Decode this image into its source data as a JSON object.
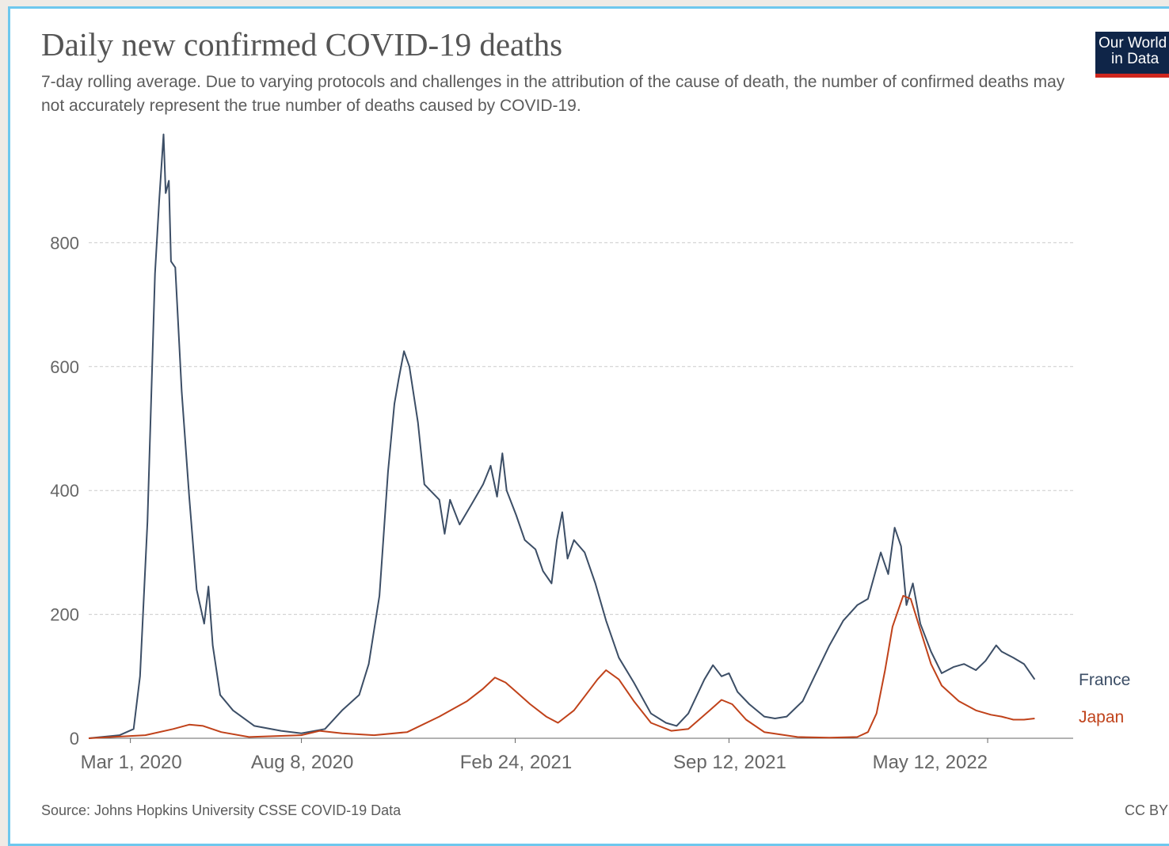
{
  "title": "Daily new confirmed COVID-19 deaths",
  "subtitle": "7-day rolling average. Due to varying protocols and challenges in the attribution of the cause of death, the number of confirmed deaths may not accurately represent the true number of deaths caused by COVID-19.",
  "logo": {
    "line1": "Our World",
    "line2": "in Data"
  },
  "source": "Source: Johns Hopkins University CSSE COVID-19 Data",
  "license": "CC BY",
  "colors": {
    "France": "#3c4e66",
    "Japan": "#c0421a",
    "grid": "#cccccc",
    "axis": "#666666"
  },
  "chart_data": {
    "type": "line",
    "title": "Daily new confirmed COVID-19 deaths",
    "xlabel": "",
    "ylabel": "",
    "ylim": [
      0,
      1000
    ],
    "xlim": [
      "2020-01-22",
      "2022-07-31"
    ],
    "grid": true,
    "legend": "right, labels at line ends",
    "yticks": [
      0,
      200,
      400,
      600,
      800
    ],
    "xticks": [
      {
        "date": "2020-03-01",
        "label": "Mar 1, 2020"
      },
      {
        "date": "2020-08-08",
        "label": "Aug 8, 2020"
      },
      {
        "date": "2021-02-24",
        "label": "Feb 24, 2021"
      },
      {
        "date": "2021-09-12",
        "label": "Sep 12, 2021"
      },
      {
        "date": "2022-05-12",
        "label": "May 12, 2022"
      }
    ],
    "series": [
      {
        "name": "France",
        "points": [
          [
            "2020-01-22",
            0
          ],
          [
            "2020-02-20",
            5
          ],
          [
            "2020-03-04",
            15
          ],
          [
            "2020-03-10",
            100
          ],
          [
            "2020-03-17",
            350
          ],
          [
            "2020-03-24",
            750
          ],
          [
            "2020-03-28",
            870
          ],
          [
            "2020-04-01",
            975
          ],
          [
            "2020-04-03",
            880
          ],
          [
            "2020-04-06",
            900
          ],
          [
            "2020-04-08",
            770
          ],
          [
            "2020-04-12",
            760
          ],
          [
            "2020-04-18",
            560
          ],
          [
            "2020-04-25",
            390
          ],
          [
            "2020-05-02",
            240
          ],
          [
            "2020-05-09",
            185
          ],
          [
            "2020-05-13",
            245
          ],
          [
            "2020-05-17",
            150
          ],
          [
            "2020-05-24",
            70
          ],
          [
            "2020-06-05",
            45
          ],
          [
            "2020-06-25",
            20
          ],
          [
            "2020-07-20",
            12
          ],
          [
            "2020-08-08",
            8
          ],
          [
            "2020-08-30",
            15
          ],
          [
            "2020-09-15",
            45
          ],
          [
            "2020-10-01",
            70
          ],
          [
            "2020-10-10",
            120
          ],
          [
            "2020-10-20",
            230
          ],
          [
            "2020-10-28",
            430
          ],
          [
            "2020-11-03",
            540
          ],
          [
            "2020-11-07",
            580
          ],
          [
            "2020-11-12",
            625
          ],
          [
            "2020-11-17",
            600
          ],
          [
            "2020-11-25",
            510
          ],
          [
            "2020-12-01",
            410
          ],
          [
            "2020-12-15",
            385
          ],
          [
            "2020-12-20",
            330
          ],
          [
            "2020-12-25",
            385
          ],
          [
            "2021-01-03",
            345
          ],
          [
            "2021-01-15",
            380
          ],
          [
            "2021-01-25",
            410
          ],
          [
            "2021-02-01",
            440
          ],
          [
            "2021-02-07",
            390
          ],
          [
            "2021-02-12",
            460
          ],
          [
            "2021-02-16",
            400
          ],
          [
            "2021-02-25",
            360
          ],
          [
            "2021-03-05",
            320
          ],
          [
            "2021-03-15",
            305
          ],
          [
            "2021-03-22",
            270
          ],
          [
            "2021-03-30",
            250
          ],
          [
            "2021-04-04",
            320
          ],
          [
            "2021-04-09",
            365
          ],
          [
            "2021-04-14",
            290
          ],
          [
            "2021-04-20",
            320
          ],
          [
            "2021-04-30",
            300
          ],
          [
            "2021-05-10",
            250
          ],
          [
            "2021-05-20",
            190
          ],
          [
            "2021-06-01",
            130
          ],
          [
            "2021-06-15",
            90
          ],
          [
            "2021-07-01",
            40
          ],
          [
            "2021-07-15",
            25
          ],
          [
            "2021-07-25",
            20
          ],
          [
            "2021-08-05",
            40
          ],
          [
            "2021-08-20",
            95
          ],
          [
            "2021-08-28",
            118
          ],
          [
            "2021-09-05",
            100
          ],
          [
            "2021-09-12",
            105
          ],
          [
            "2021-09-20",
            75
          ],
          [
            "2021-10-01",
            55
          ],
          [
            "2021-10-15",
            35
          ],
          [
            "2021-10-25",
            32
          ],
          [
            "2021-11-05",
            35
          ],
          [
            "2021-11-20",
            60
          ],
          [
            "2021-12-01",
            100
          ],
          [
            "2021-12-15",
            150
          ],
          [
            "2021-12-28",
            190
          ],
          [
            "2022-01-10",
            215
          ],
          [
            "2022-01-20",
            225
          ],
          [
            "2022-02-01",
            300
          ],
          [
            "2022-02-08",
            265
          ],
          [
            "2022-02-14",
            340
          ],
          [
            "2022-02-20",
            310
          ],
          [
            "2022-02-25",
            215
          ],
          [
            "2022-03-03",
            250
          ],
          [
            "2022-03-10",
            185
          ],
          [
            "2022-03-20",
            140
          ],
          [
            "2022-03-30",
            105
          ],
          [
            "2022-04-10",
            115
          ],
          [
            "2022-04-20",
            120
          ],
          [
            "2022-05-01",
            110
          ],
          [
            "2022-05-10",
            125
          ],
          [
            "2022-05-20",
            150
          ],
          [
            "2022-05-25",
            140
          ],
          [
            "2022-06-05",
            130
          ],
          [
            "2022-06-15",
            120
          ],
          [
            "2022-06-25",
            95
          ]
        ]
      },
      {
        "name": "Japan",
        "points": [
          [
            "2020-01-22",
            0
          ],
          [
            "2020-03-15",
            5
          ],
          [
            "2020-04-10",
            15
          ],
          [
            "2020-04-25",
            22
          ],
          [
            "2020-05-08",
            20
          ],
          [
            "2020-05-25",
            10
          ],
          [
            "2020-06-20",
            2
          ],
          [
            "2020-08-08",
            5
          ],
          [
            "2020-08-25",
            12
          ],
          [
            "2020-09-15",
            8
          ],
          [
            "2020-10-15",
            5
          ],
          [
            "2020-11-15",
            10
          ],
          [
            "2020-12-15",
            35
          ],
          [
            "2021-01-10",
            60
          ],
          [
            "2021-01-25",
            80
          ],
          [
            "2021-02-05",
            98
          ],
          [
            "2021-02-15",
            90
          ],
          [
            "2021-02-25",
            75
          ],
          [
            "2021-03-10",
            55
          ],
          [
            "2021-03-25",
            35
          ],
          [
            "2021-04-05",
            25
          ],
          [
            "2021-04-20",
            45
          ],
          [
            "2021-05-01",
            70
          ],
          [
            "2021-05-12",
            95
          ],
          [
            "2021-05-20",
            110
          ],
          [
            "2021-06-01",
            95
          ],
          [
            "2021-06-15",
            60
          ],
          [
            "2021-07-01",
            25
          ],
          [
            "2021-07-20",
            12
          ],
          [
            "2021-08-05",
            15
          ],
          [
            "2021-08-25",
            45
          ],
          [
            "2021-09-05",
            62
          ],
          [
            "2021-09-15",
            55
          ],
          [
            "2021-09-28",
            30
          ],
          [
            "2021-10-15",
            10
          ],
          [
            "2021-11-15",
            2
          ],
          [
            "2021-12-15",
            1
          ],
          [
            "2022-01-10",
            2
          ],
          [
            "2022-01-20",
            10
          ],
          [
            "2022-01-28",
            40
          ],
          [
            "2022-02-05",
            110
          ],
          [
            "2022-02-12",
            180
          ],
          [
            "2022-02-22",
            230
          ],
          [
            "2022-03-01",
            225
          ],
          [
            "2022-03-10",
            175
          ],
          [
            "2022-03-20",
            120
          ],
          [
            "2022-03-30",
            85
          ],
          [
            "2022-04-15",
            60
          ],
          [
            "2022-05-01",
            45
          ],
          [
            "2022-05-15",
            38
          ],
          [
            "2022-05-25",
            35
          ],
          [
            "2022-06-05",
            30
          ],
          [
            "2022-06-15",
            30
          ],
          [
            "2022-06-25",
            32
          ]
        ]
      }
    ]
  }
}
